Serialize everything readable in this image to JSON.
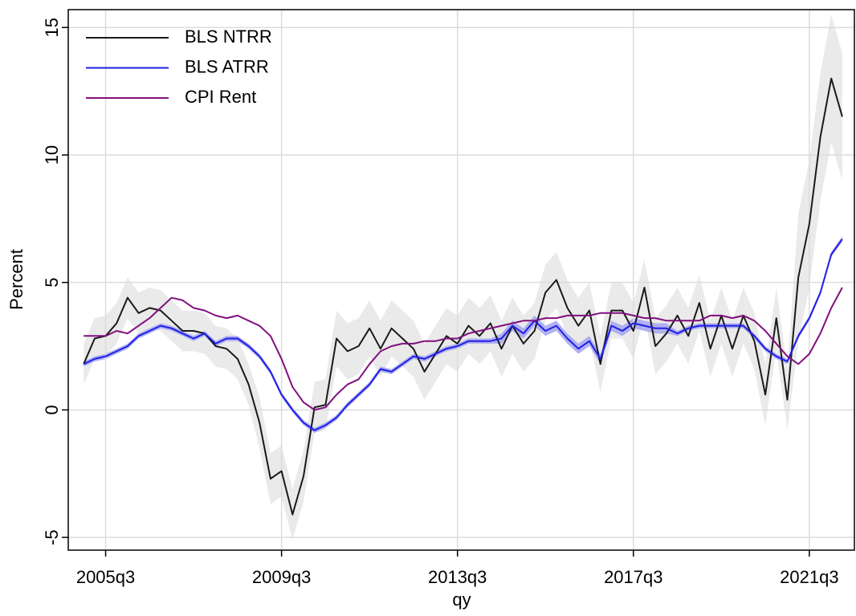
{
  "chart_data": {
    "type": "line",
    "x_label": "qy",
    "y_label": "Percent",
    "x": [
      180,
      181,
      182,
      183,
      184,
      185,
      186,
      187,
      188,
      189,
      190,
      191,
      192,
      193,
      194,
      195,
      196,
      197,
      198,
      199,
      200,
      201,
      202,
      203,
      204,
      205,
      206,
      207,
      208,
      209,
      210,
      211,
      212,
      213,
      214,
      215,
      216,
      217,
      218,
      219,
      220,
      221,
      222,
      223,
      224,
      225,
      226,
      227,
      228,
      229,
      230,
      231,
      232,
      233,
      234,
      235,
      236,
      237,
      238,
      239,
      240,
      241,
      242,
      243,
      244,
      245,
      246,
      247,
      248,
      249
    ],
    "xlim": [
      178.6,
      250.1
    ],
    "xticks": [
      {
        "value": 182,
        "label": "2005q3"
      },
      {
        "value": 198,
        "label": "2009q3"
      },
      {
        "value": 214,
        "label": "2013q3"
      },
      {
        "value": 230,
        "label": "2017q3"
      },
      {
        "value": 246,
        "label": "2021q3"
      }
    ],
    "ylim": [
      -5.5,
      15.7
    ],
    "yticks": [
      {
        "value": -5,
        "label": "-5"
      },
      0,
      5,
      10,
      15
    ],
    "grid": true,
    "legend": "top-left",
    "series": [
      {
        "name": "BLS NTRR",
        "color": "#1a1a1a",
        "band_color": "#e3e3e3",
        "values": [
          1.8,
          2.8,
          2.9,
          3.4,
          4.4,
          3.8,
          4.0,
          3.9,
          3.5,
          3.1,
          3.1,
          3.0,
          2.5,
          2.4,
          2.0,
          1.0,
          -0.5,
          -2.7,
          -2.4,
          -4.1,
          -2.6,
          0.1,
          0.2,
          2.8,
          2.3,
          2.5,
          3.2,
          2.4,
          3.2,
          2.8,
          2.4,
          1.5,
          2.2,
          2.9,
          2.6,
          3.3,
          2.9,
          3.4,
          2.4,
          3.3,
          2.6,
          3.1,
          4.6,
          5.1,
          4.0,
          3.3,
          3.9,
          1.8,
          3.9,
          3.9,
          3.1,
          4.8,
          2.5,
          3.0,
          3.7,
          2.9,
          4.2,
          2.4,
          3.7,
          2.4,
          3.7,
          2.7,
          0.6,
          3.6,
          0.4,
          5.2,
          7.3,
          10.7,
          13.0,
          11.5
        ],
        "lower": [
          1.0,
          2.0,
          2.1,
          2.6,
          3.6,
          3.0,
          3.2,
          3.1,
          2.7,
          2.3,
          2.3,
          2.2,
          1.7,
          1.6,
          1.2,
          0.2,
          -1.5,
          -3.7,
          -3.4,
          -5.1,
          -3.6,
          -0.9,
          -0.8,
          1.7,
          1.2,
          1.4,
          2.1,
          1.3,
          2.1,
          1.7,
          1.3,
          0.4,
          1.1,
          1.8,
          1.5,
          2.2,
          1.8,
          2.3,
          1.3,
          2.2,
          1.5,
          2.0,
          3.5,
          4.0,
          2.9,
          2.2,
          2.8,
          0.7,
          2.8,
          2.8,
          2.0,
          3.7,
          1.4,
          1.9,
          2.6,
          1.8,
          3.1,
          1.3,
          2.6,
          1.3,
          2.6,
          1.6,
          -0.6,
          2.4,
          -0.8,
          2.7,
          4.8,
          8.2,
          10.5,
          9.0
        ],
        "upper": [
          2.6,
          3.6,
          3.7,
          4.2,
          5.2,
          4.6,
          4.8,
          4.7,
          4.3,
          3.9,
          3.9,
          3.8,
          3.3,
          3.2,
          2.8,
          1.8,
          0.5,
          -1.7,
          -1.4,
          -3.1,
          -1.6,
          1.1,
          1.2,
          3.9,
          3.4,
          3.6,
          4.3,
          3.5,
          4.3,
          3.9,
          3.5,
          2.6,
          3.3,
          4.0,
          3.7,
          4.4,
          4.0,
          4.5,
          3.5,
          4.4,
          3.7,
          4.2,
          5.7,
          6.2,
          5.1,
          4.4,
          5.0,
          2.9,
          5.0,
          5.0,
          4.2,
          5.9,
          3.6,
          4.1,
          4.8,
          4.0,
          5.3,
          3.5,
          4.8,
          3.5,
          4.8,
          3.8,
          1.8,
          4.8,
          1.6,
          7.7,
          9.8,
          13.2,
          15.5,
          14.0
        ]
      },
      {
        "name": "BLS ATRR",
        "color": "#1f1fe6",
        "band_color": "#a9a9f2",
        "values": [
          1.8,
          2.0,
          2.1,
          2.3,
          2.5,
          2.9,
          3.1,
          3.3,
          3.2,
          3.0,
          2.8,
          3.0,
          2.6,
          2.8,
          2.8,
          2.5,
          2.1,
          1.5,
          0.6,
          0.0,
          -0.5,
          -0.8,
          -0.6,
          -0.3,
          0.2,
          0.6,
          1.0,
          1.6,
          1.5,
          1.8,
          2.1,
          2.0,
          2.2,
          2.4,
          2.5,
          2.7,
          2.7,
          2.7,
          2.8,
          3.3,
          3.0,
          3.5,
          3.1,
          3.3,
          2.8,
          2.4,
          2.7,
          2.0,
          3.3,
          3.1,
          3.4,
          3.3,
          3.2,
          3.2,
          3.0,
          3.2,
          3.3,
          3.3,
          3.3,
          3.3,
          3.3,
          2.9,
          2.4,
          2.1,
          1.9,
          2.9,
          3.6,
          4.6,
          6.1,
          6.7
        ],
        "lower": [
          1.7,
          1.9,
          2.0,
          2.2,
          2.4,
          2.8,
          3.0,
          3.2,
          3.1,
          2.9,
          2.7,
          2.9,
          2.5,
          2.7,
          2.7,
          2.4,
          2.0,
          1.4,
          0.5,
          -0.1,
          -0.6,
          -0.9,
          -0.7,
          -0.4,
          0.1,
          0.5,
          0.9,
          1.5,
          1.4,
          1.7,
          2.0,
          1.9,
          2.1,
          2.3,
          2.4,
          2.6,
          2.6,
          2.6,
          2.6,
          3.1,
          2.8,
          3.3,
          2.9,
          3.1,
          2.6,
          2.2,
          2.5,
          1.8,
          3.1,
          2.9,
          3.2,
          3.1,
          3.0,
          3.0,
          2.9,
          3.1,
          3.2,
          3.2,
          3.2,
          3.2,
          3.2,
          2.8,
          2.3,
          2.0,
          1.8,
          2.8,
          3.5,
          4.5,
          6.0,
          6.6
        ],
        "upper": [
          1.9,
          2.1,
          2.2,
          2.4,
          2.6,
          3.0,
          3.2,
          3.4,
          3.3,
          3.1,
          2.9,
          3.1,
          2.7,
          2.9,
          2.9,
          2.6,
          2.2,
          1.6,
          0.7,
          0.1,
          -0.4,
          -0.7,
          -0.5,
          -0.2,
          0.3,
          0.7,
          1.1,
          1.7,
          1.6,
          1.9,
          2.2,
          2.1,
          2.3,
          2.5,
          2.6,
          2.8,
          2.8,
          2.8,
          3.0,
          3.5,
          3.2,
          3.7,
          3.3,
          3.5,
          3.0,
          2.6,
          2.9,
          2.2,
          3.5,
          3.3,
          3.6,
          3.5,
          3.4,
          3.4,
          3.1,
          3.3,
          3.4,
          3.4,
          3.4,
          3.4,
          3.4,
          3.0,
          2.5,
          2.2,
          2.0,
          3.0,
          3.7,
          4.7,
          6.2,
          6.8
        ]
      },
      {
        "name": "CPI Rent",
        "color": "#80107f",
        "values": [
          2.9,
          2.9,
          2.9,
          3.1,
          3.0,
          3.3,
          3.6,
          4.0,
          4.4,
          4.3,
          4.0,
          3.9,
          3.7,
          3.6,
          3.7,
          3.5,
          3.3,
          2.9,
          2.0,
          0.9,
          0.3,
          0.0,
          0.1,
          0.6,
          1.0,
          1.2,
          1.8,
          2.3,
          2.5,
          2.6,
          2.6,
          2.7,
          2.7,
          2.8,
          2.8,
          3.0,
          3.1,
          3.2,
          3.3,
          3.4,
          3.5,
          3.5,
          3.6,
          3.6,
          3.7,
          3.7,
          3.7,
          3.8,
          3.8,
          3.8,
          3.7,
          3.6,
          3.6,
          3.5,
          3.5,
          3.5,
          3.5,
          3.7,
          3.7,
          3.6,
          3.7,
          3.5,
          3.1,
          2.6,
          2.1,
          1.8,
          2.2,
          3.0,
          4.0,
          4.8
        ]
      }
    ]
  }
}
